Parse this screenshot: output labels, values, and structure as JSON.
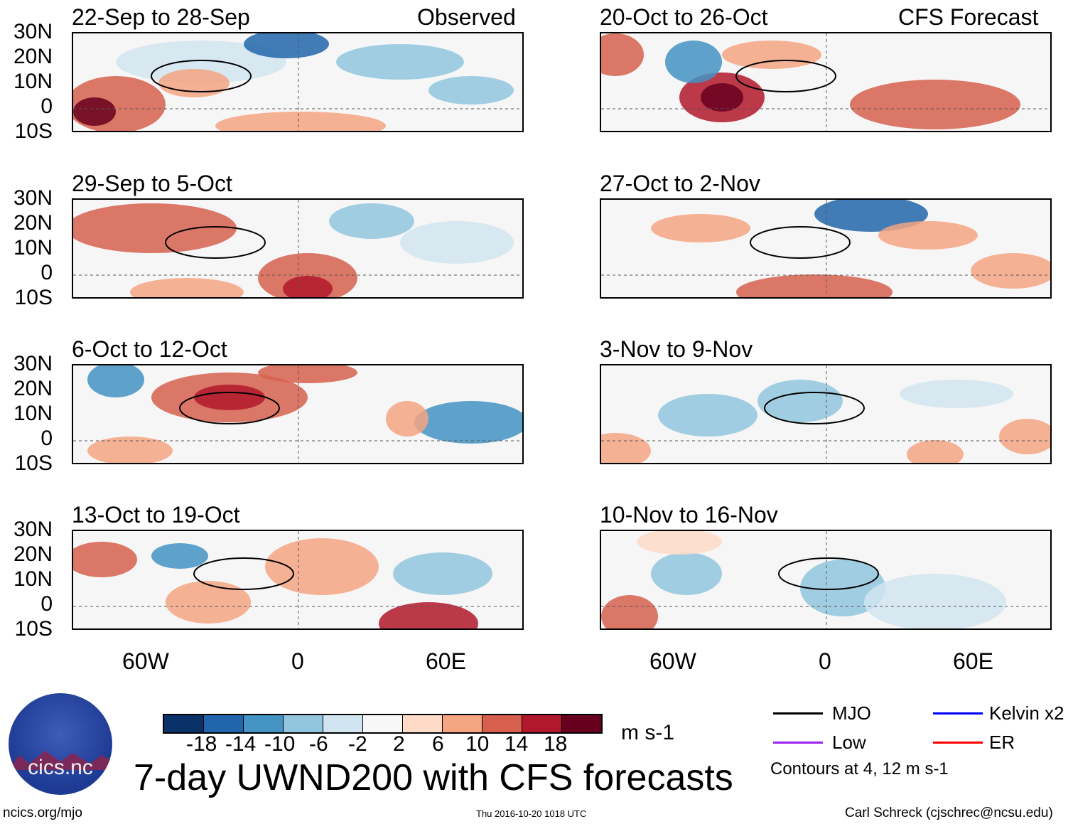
{
  "panels_left_header": "Observed",
  "panels_right_header": "CFS Forecast",
  "panels": [
    {
      "title": "22-Sep to 28-Sep",
      "column": "left",
      "row": 0
    },
    {
      "title": "29-Sep to 5-Oct",
      "column": "left",
      "row": 1
    },
    {
      "title": "6-Oct to 12-Oct",
      "column": "left",
      "row": 2
    },
    {
      "title": "13-Oct to 19-Oct",
      "column": "left",
      "row": 3
    },
    {
      "title": "20-Oct to 26-Oct",
      "column": "right",
      "row": 0
    },
    {
      "title": "27-Oct to 2-Nov",
      "column": "right",
      "row": 1
    },
    {
      "title": "3-Nov to 9-Nov",
      "column": "right",
      "row": 2
    },
    {
      "title": "10-Nov to 16-Nov",
      "column": "right",
      "row": 3
    }
  ],
  "chart_data": {
    "type": "heatmap",
    "title": "7-day UWND200 with CFS forecasts",
    "units": "m s-1",
    "lat_ticks": [
      "30N",
      "20N",
      "10N",
      "0",
      "10S"
    ],
    "lon_ticks": [
      "60W",
      "0",
      "60E"
    ],
    "ylim": [
      -10,
      30
    ],
    "colorbar": {
      "levels": [
        "-18",
        "-14",
        "-10",
        "-6",
        "-2",
        "2",
        "6",
        "10",
        "14",
        "18"
      ],
      "colors": [
        "#0a3168",
        "#2166ac",
        "#4393c3",
        "#92c5de",
        "#d1e5f0",
        "#f7f7f7",
        "#fddbc7",
        "#f4a582",
        "#d6604d",
        "#b2182b",
        "#67001f"
      ]
    },
    "contours": [
      {
        "name": "MJO",
        "color": "#000000"
      },
      {
        "name": "Kelvin x2",
        "color": "#0000ff"
      },
      {
        "name": "Low",
        "color": "#a020f0"
      },
      {
        "name": "ER",
        "color": "#ff0000"
      }
    ],
    "contour_note": "Contours at 4, 12 m s-1"
  },
  "footer": {
    "left": "ncics.org/mjo",
    "center": "Thu 2016-10-20 1018 UTC",
    "right": "Carl Schreck (cjschrec@ncsu.edu)"
  },
  "logo_text": "cics.nc"
}
